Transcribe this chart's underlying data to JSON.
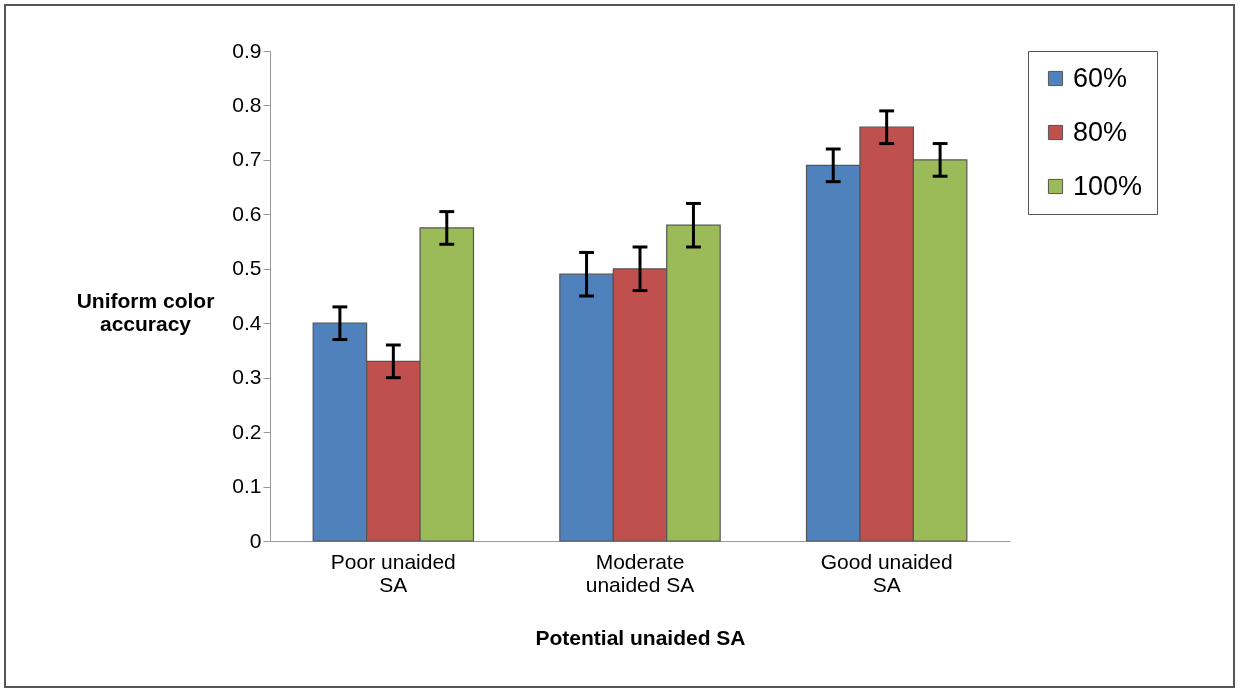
{
  "chart_data": {
    "type": "bar",
    "xlabel": "Potential unaided SA",
    "ylabel": "Uniform color accuracy",
    "categories": [
      "Poor unaided SA",
      "Moderate unaided SA",
      "Good unaided SA"
    ],
    "series": [
      {
        "name": "60%",
        "color": "#4f81bd",
        "values": [
          0.4,
          0.49,
          0.69
        ],
        "errors": [
          0.03,
          0.04,
          0.03
        ]
      },
      {
        "name": "80%",
        "color": "#c0504d",
        "values": [
          0.33,
          0.5,
          0.76
        ],
        "errors": [
          0.03,
          0.04,
          0.03
        ]
      },
      {
        "name": "100%",
        "color": "#9bbb59",
        "values": [
          0.575,
          0.58,
          0.7
        ],
        "errors": [
          0.03,
          0.04,
          0.03
        ]
      }
    ],
    "ylim": [
      0,
      0.9
    ],
    "yticks": [
      0,
      0.1,
      0.2,
      0.3,
      0.4,
      0.5,
      0.6,
      0.7,
      0.8,
      0.9
    ],
    "grid": false,
    "legend": "top right"
  }
}
